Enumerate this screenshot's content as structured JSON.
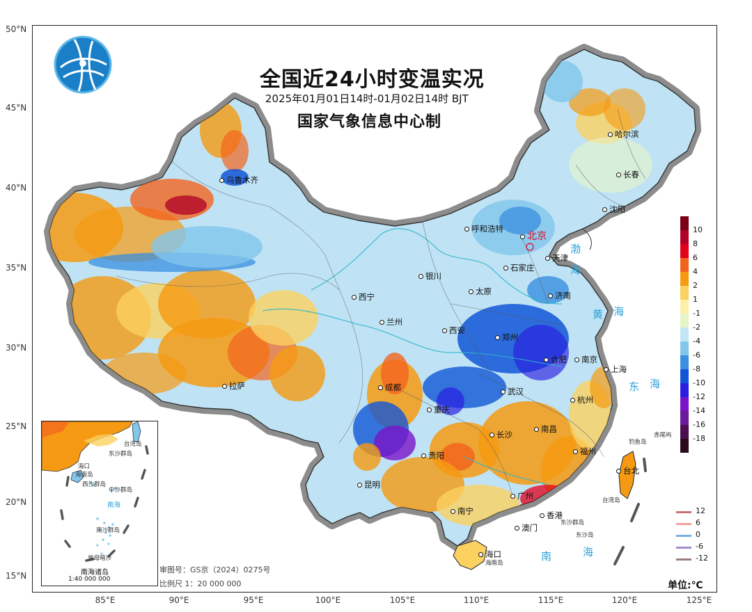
{
  "title": "全国近24小时变温实况",
  "subtitle": "2025年01月01日14时-01月02日14时  BJT",
  "organization": "国家气象信息中心制",
  "latitude_labels": [
    "50°N",
    "45°N",
    "40°N",
    "35°N",
    "30°N",
    "25°N",
    "20°N",
    "15°N"
  ],
  "longitude_labels": [
    "85°E",
    "90°E",
    "95°E",
    "100°E",
    "105°E",
    "110°E",
    "115°E",
    "120°E",
    "125°E"
  ],
  "cities": [
    "乌鲁木齐",
    "哈尔滨",
    "长春",
    "沈阳",
    "呼和浩特",
    "北京",
    "天津",
    "石家庄",
    "银川",
    "太原",
    "济南",
    "西宁",
    "兰州",
    "西安",
    "郑州",
    "合肥",
    "南京",
    "上海",
    "拉萨",
    "成都",
    "武汉",
    "杭州",
    "重庆",
    "长沙",
    "南昌",
    "贵阳",
    "福州",
    "昆明",
    "台北",
    "广州",
    "南宁",
    "香港",
    "澳门",
    "海口"
  ],
  "seas": [
    "渤",
    "海",
    "黄",
    "海",
    "东",
    "海",
    "南",
    "海"
  ],
  "islands": [
    "钓鱼岛",
    "赤尾屿",
    "东沙群岛",
    "东沙岛",
    "海南岛",
    "台湾岛"
  ],
  "inset": {
    "title": "南海诸岛",
    "scale": "1:40 000 000",
    "labels": [
      "台湾岛",
      "东沙群岛",
      "海南岛",
      "西沙群岛",
      "中沙群岛",
      "南海",
      "南沙群岛",
      "曾母暗沙",
      "海口"
    ]
  },
  "review_number": "审图号：GS京（2024）0275号",
  "scale_text": "比例尺  1：20 000 000",
  "unit_label": "单位:℃",
  "color_legend": {
    "values": [
      "10",
      "8",
      "6",
      "4",
      "2",
      "1",
      "-1",
      "-2",
      "-4",
      "-6",
      "-8",
      "-10",
      "-12",
      "-14",
      "-16",
      "-18"
    ],
    "colors": [
      "#7a0016",
      "#b00026",
      "#e3001b",
      "#f2641e",
      "#f59a12",
      "#fbd160",
      "#fdf0a8",
      "#e6f5c8",
      "#c3e6f5",
      "#82c6ec",
      "#3a8fe0",
      "#1256d6",
      "#2a1fe0",
      "#7b14c8",
      "#6a1a9a",
      "#4a1050",
      "#2a0a1c"
    ]
  },
  "line_legend": [
    {
      "label": "12",
      "color": "#c97070"
    },
    {
      "label": "6",
      "color": "#f0a0a0"
    },
    {
      "label": "0",
      "color": "#79aee0"
    },
    {
      "label": "-6",
      "color": "#a48bd0"
    },
    {
      "label": "-12",
      "color": "#9a7c7c"
    }
  ]
}
